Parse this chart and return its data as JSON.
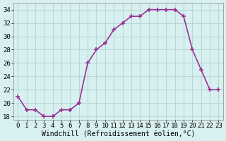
{
  "x": [
    0,
    1,
    2,
    3,
    4,
    5,
    6,
    7,
    8,
    9,
    10,
    11,
    12,
    13,
    14,
    15,
    16,
    17,
    18,
    19,
    20,
    21,
    22,
    23
  ],
  "y": [
    21,
    19,
    19,
    18,
    18,
    19,
    19,
    20,
    26,
    28,
    29,
    31,
    32,
    33,
    33,
    34,
    34,
    34,
    34,
    33,
    28,
    25,
    22,
    22
  ],
  "line_color": "#993399",
  "marker_color": "#993399",
  "bg_color": "#d8f0f0",
  "grid_color": "#b8d8d8",
  "xlabel": "Windchill (Refroidissement éolien,°C)",
  "ylabel": "",
  "xlim": [
    -0.5,
    23.5
  ],
  "ylim": [
    17.5,
    35
  ],
  "yticks": [
    18,
    20,
    22,
    24,
    26,
    28,
    30,
    32,
    34
  ],
  "xticks": [
    0,
    1,
    2,
    3,
    4,
    5,
    6,
    7,
    8,
    9,
    10,
    11,
    12,
    13,
    14,
    15,
    16,
    17,
    18,
    19,
    20,
    21,
    22,
    23
  ],
  "xlabel_fontsize": 7,
  "tick_fontsize": 6.5,
  "line_width": 1.2,
  "marker_size": 4
}
